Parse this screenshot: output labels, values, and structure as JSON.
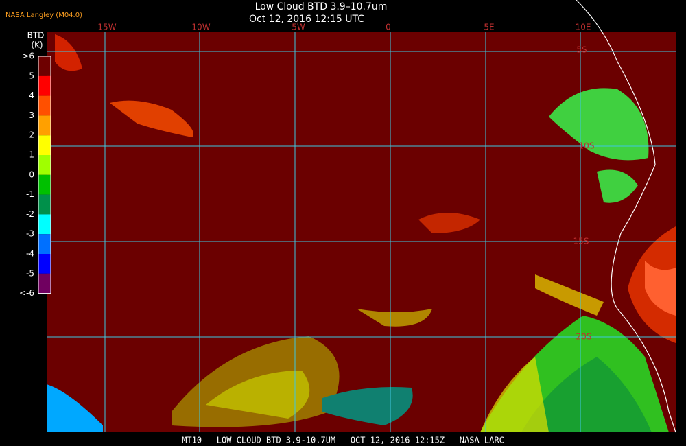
{
  "header": {
    "title": "Low Cloud BTD 3.9–10.7um",
    "subtitle": "Oct 12, 2016 12:15 UTC",
    "source": "NASA Langley (M04.0)"
  },
  "colorbar": {
    "title": "BTD",
    "unit": "(K)",
    "labels": [
      ">6",
      "5",
      "4",
      "3",
      "2",
      "1",
      "0",
      "-1",
      "-2",
      "-3",
      "-4",
      "-5",
      "<-6"
    ],
    "colors": [
      "#6e0000",
      "#ff0000",
      "#ff5000",
      "#ffa000",
      "#ffff00",
      "#a0ff00",
      "#00c000",
      "#00904a",
      "#00ffff",
      "#0070ff",
      "#0000ff",
      "#700060"
    ]
  },
  "map": {
    "longitude_labels": [
      "15W",
      "10W",
      "5W",
      "0",
      "5E",
      "10E"
    ],
    "latitude_labels": [
      "5S",
      "10S",
      "15S",
      "20S"
    ]
  },
  "footer": "MT10   LOW CLOUD BTD 3.9-10.7UM   OCT 12, 2016 12:15Z   NASA LARC"
}
